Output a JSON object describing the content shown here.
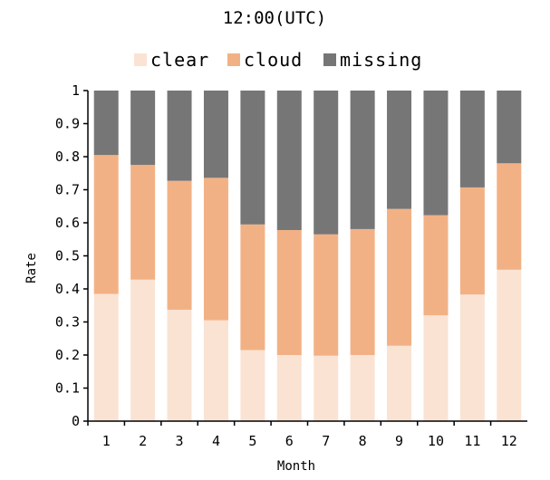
{
  "chart_data": {
    "type": "bar",
    "stacked": true,
    "title": "12:00(UTC)",
    "xlabel": "Month",
    "ylabel": "Rate",
    "ylim": [
      0,
      1
    ],
    "y_ticks": [
      "0",
      "0.1",
      "0.2",
      "0.3",
      "0.4",
      "0.5",
      "0.6",
      "0.7",
      "0.8",
      "0.9",
      "1"
    ],
    "categories": [
      "1",
      "2",
      "3",
      "4",
      "5",
      "6",
      "7",
      "8",
      "9",
      "10",
      "11",
      "12"
    ],
    "legend_position": "top-center",
    "grid": false,
    "series": [
      {
        "name": "clear",
        "color": "#fae3d3",
        "values": [
          0.385,
          0.428,
          0.337,
          0.305,
          0.215,
          0.2,
          0.198,
          0.2,
          0.228,
          0.32,
          0.383,
          0.458
        ]
      },
      {
        "name": "cloud",
        "color": "#f2b185",
        "values": [
          0.42,
          0.347,
          0.39,
          0.431,
          0.38,
          0.378,
          0.367,
          0.381,
          0.414,
          0.303,
          0.324,
          0.322
        ]
      },
      {
        "name": "missing",
        "color": "#767676",
        "values": [
          0.195,
          0.225,
          0.273,
          0.264,
          0.405,
          0.422,
          0.435,
          0.419,
          0.358,
          0.377,
          0.293,
          0.22
        ]
      }
    ]
  }
}
